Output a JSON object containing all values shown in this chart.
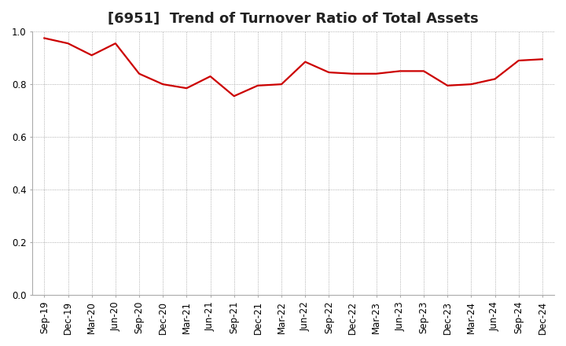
{
  "title": "[6951]  Trend of Turnover Ratio of Total Assets",
  "x_labels": [
    "Sep-19",
    "Dec-19",
    "Mar-20",
    "Jun-20",
    "Sep-20",
    "Dec-20",
    "Mar-21",
    "Jun-21",
    "Sep-21",
    "Dec-21",
    "Mar-22",
    "Jun-22",
    "Sep-22",
    "Dec-22",
    "Mar-23",
    "Jun-23",
    "Sep-23",
    "Dec-23",
    "Mar-24",
    "Jun-24",
    "Sep-24",
    "Dec-24"
  ],
  "y_values": [
    0.975,
    0.955,
    0.91,
    0.955,
    0.84,
    0.8,
    0.785,
    0.83,
    0.755,
    0.795,
    0.8,
    0.885,
    0.845,
    0.84,
    0.84,
    0.85,
    0.85,
    0.795,
    0.8,
    0.82,
    0.89,
    0.895
  ],
  "ylim": [
    0.0,
    1.0
  ],
  "yticks": [
    0.0,
    0.2,
    0.4,
    0.6,
    0.8,
    1.0
  ],
  "line_color": "#cc0000",
  "line_width": 1.6,
  "grid_color": "#999999",
  "background_color": "#ffffff",
  "title_fontsize": 13,
  "tick_fontsize": 8.5,
  "title_color": "#222222",
  "title_fontweight": "bold"
}
